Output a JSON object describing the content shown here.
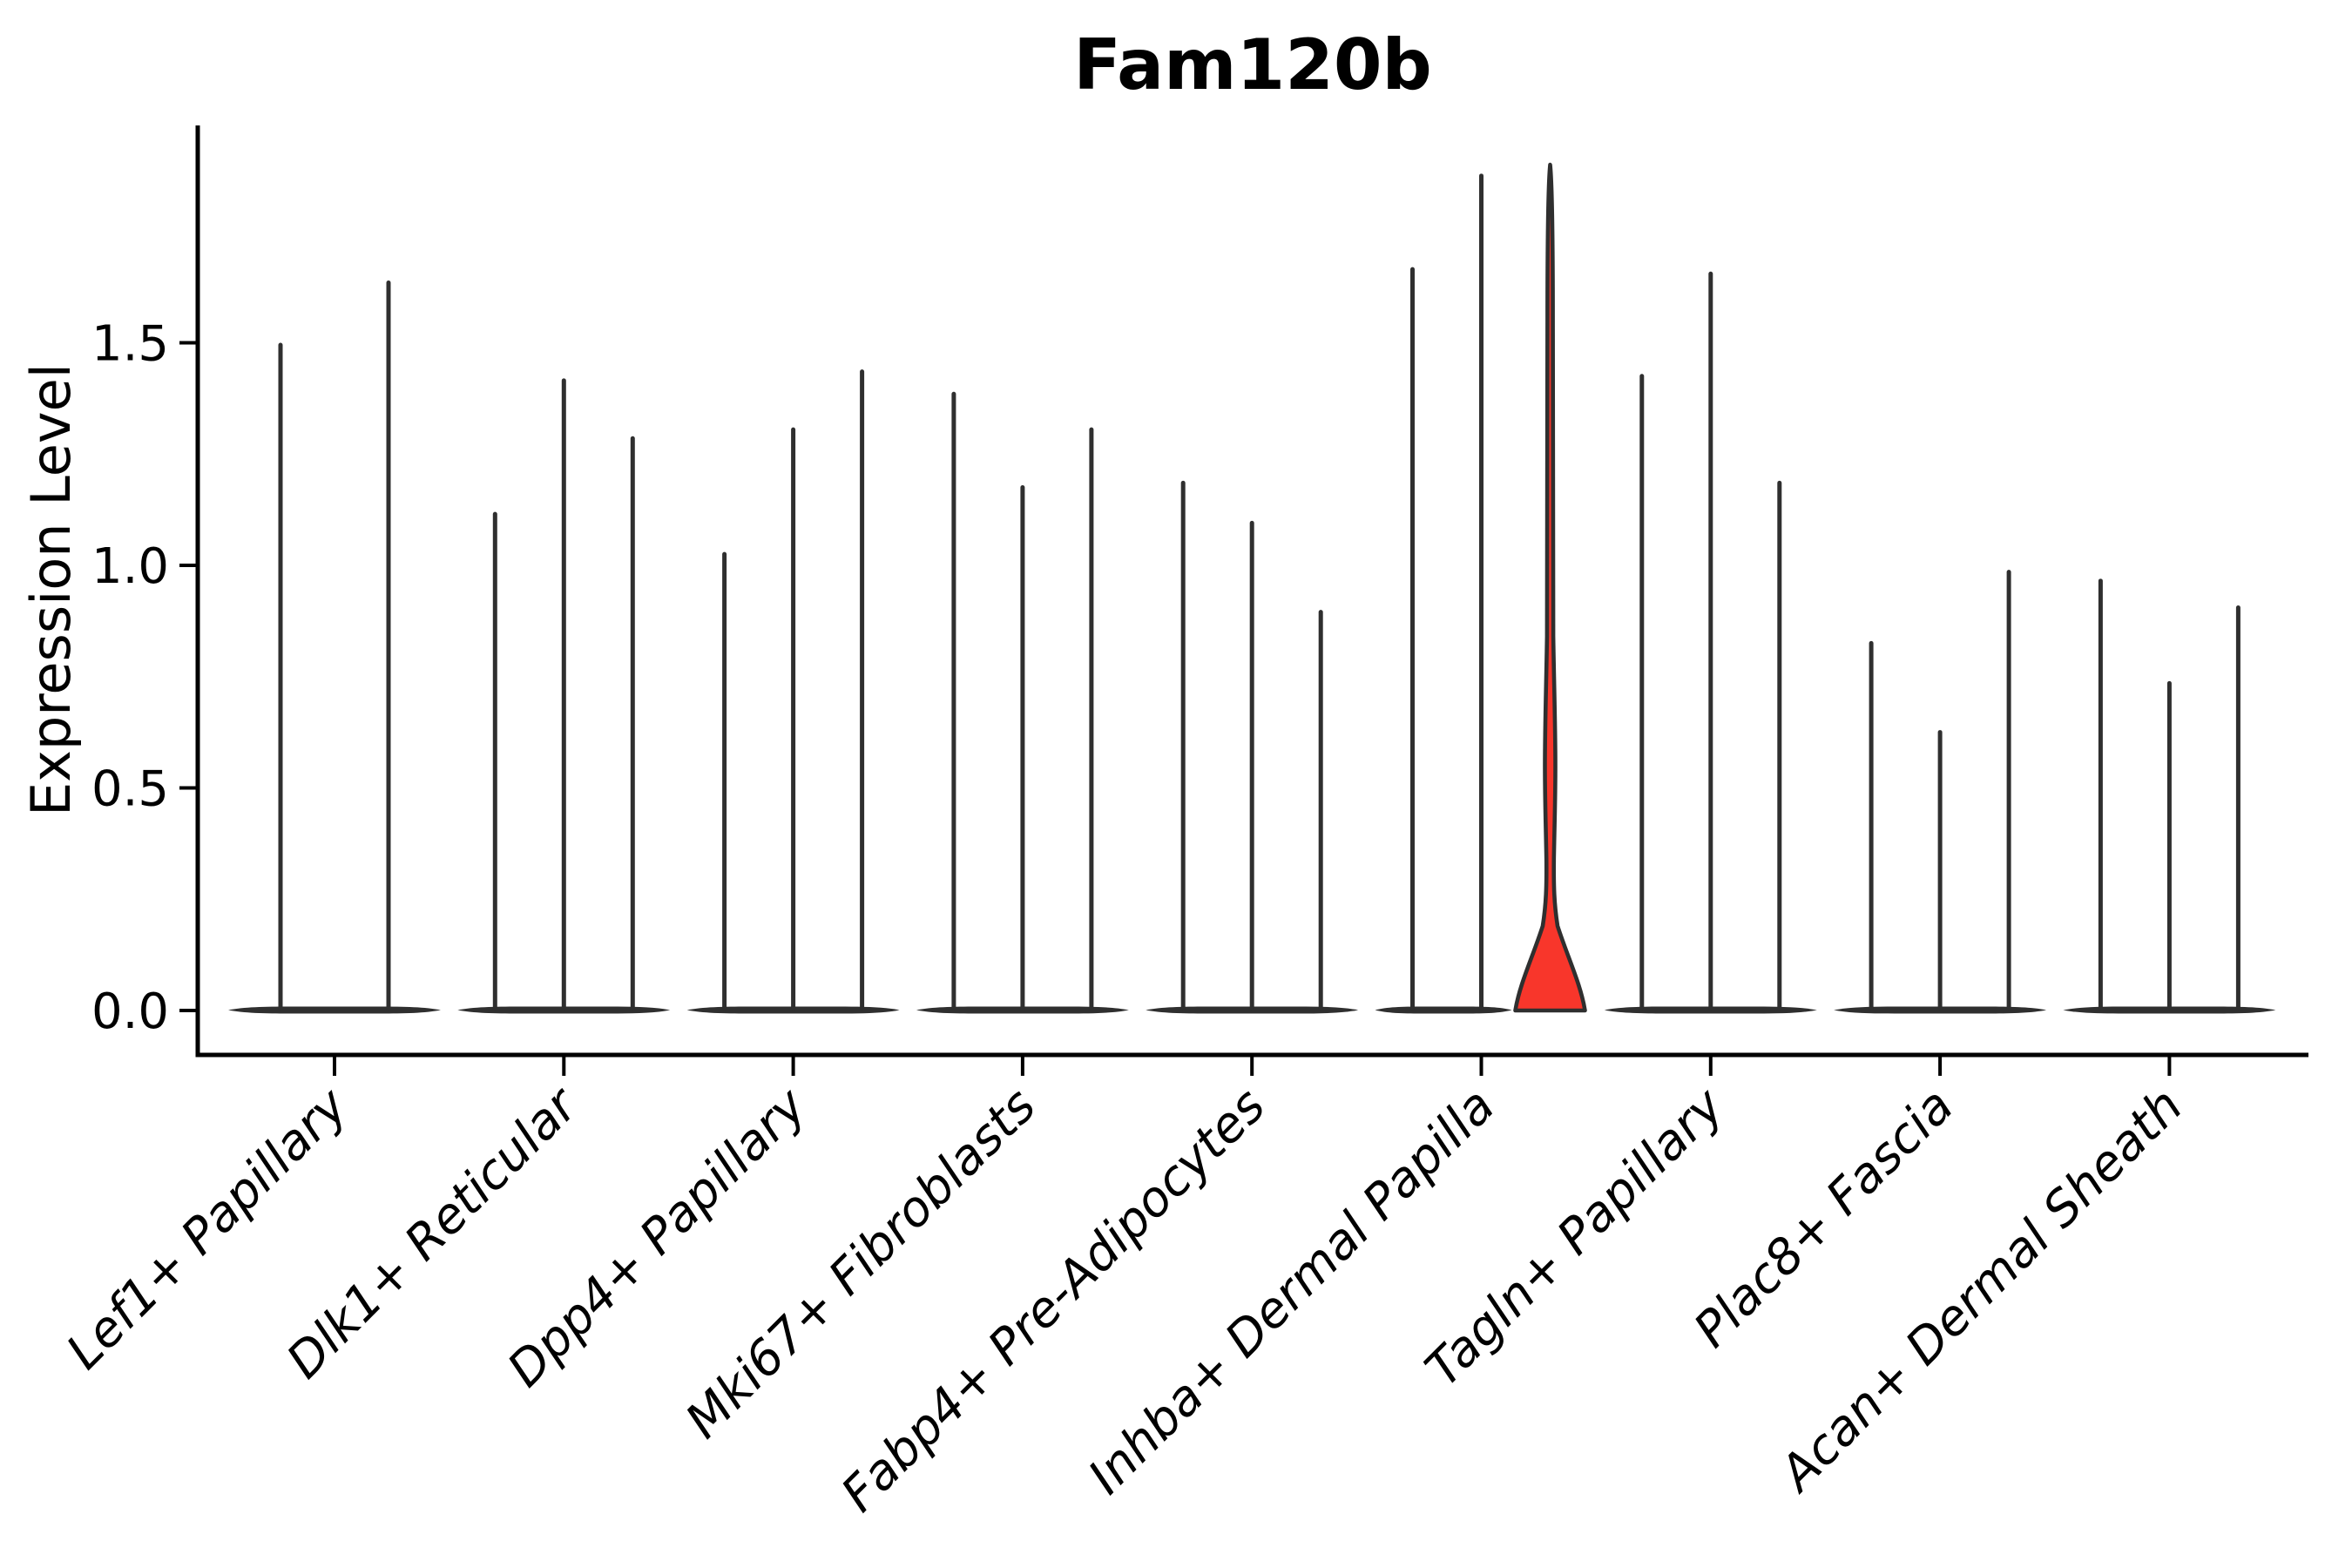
{
  "chart_data": {
    "type": "violin",
    "title": "Fam120b",
    "ylabel": "Expression Level",
    "xlabel": "",
    "yticks": [
      0.0,
      0.5,
      1.0,
      1.5
    ],
    "ytick_labels": [
      "0.0",
      "0.5",
      "1.0",
      "1.5"
    ],
    "ylim": [
      -0.12,
      1.99
    ],
    "grid": false,
    "legend": "none",
    "categories": [
      "Lef1+ Papillary",
      "Dlk1+ Reticular",
      "Dpp4+ Papillary",
      "Mki67+ Fibroblasts",
      "Fabp4+ Pre-Adipocytes",
      "Inhba+ Dermal Papilla",
      "Tagln+ Papillary",
      "Plac8+ Fascia",
      "Acan+ Dermal Sheath"
    ],
    "groups": [
      {
        "category": "Lef1+ Papillary",
        "violins": [
          {
            "max": 1.5
          },
          {
            "max": 1.64
          }
        ]
      },
      {
        "category": "Dlk1+ Reticular",
        "violins": [
          {
            "max": 1.12
          },
          {
            "max": 1.42
          },
          {
            "max": 1.29
          }
        ]
      },
      {
        "category": "Dpp4+ Papillary",
        "violins": [
          {
            "max": 1.03
          },
          {
            "max": 1.31
          },
          {
            "max": 1.44
          }
        ]
      },
      {
        "category": "Mki67+ Fibroblasts",
        "violins": [
          {
            "max": 1.39
          },
          {
            "max": 1.18
          },
          {
            "max": 1.31
          }
        ]
      },
      {
        "category": "Fabp4+ Pre-Adipocytes",
        "violins": [
          {
            "max": 1.19
          },
          {
            "max": 1.1
          },
          {
            "max": 0.9
          }
        ]
      },
      {
        "category": "Inhba+ Dermal Papilla",
        "violins": [
          {
            "max": 1.67
          },
          {
            "max": 1.88
          },
          {
            "max": 1.9,
            "highlighted": true,
            "shape": "bell"
          }
        ]
      },
      {
        "category": "Tagln+ Papillary",
        "violins": [
          {
            "max": 1.43
          },
          {
            "max": 1.66
          },
          {
            "max": 1.19
          }
        ]
      },
      {
        "category": "Plac8+ Fascia",
        "violins": [
          {
            "max": 0.83
          },
          {
            "max": 0.63
          },
          {
            "max": 0.99
          }
        ]
      },
      {
        "category": "Acan+ Dermal Sheath",
        "violins": [
          {
            "max": 0.97
          },
          {
            "max": 0.74
          },
          {
            "max": 0.91
          }
        ]
      }
    ],
    "style": {
      "violin_color": "#2F2F2F",
      "highlight_fill": "#F8362B",
      "axis_color": "#000000",
      "background": "#FFFFFF"
    }
  }
}
